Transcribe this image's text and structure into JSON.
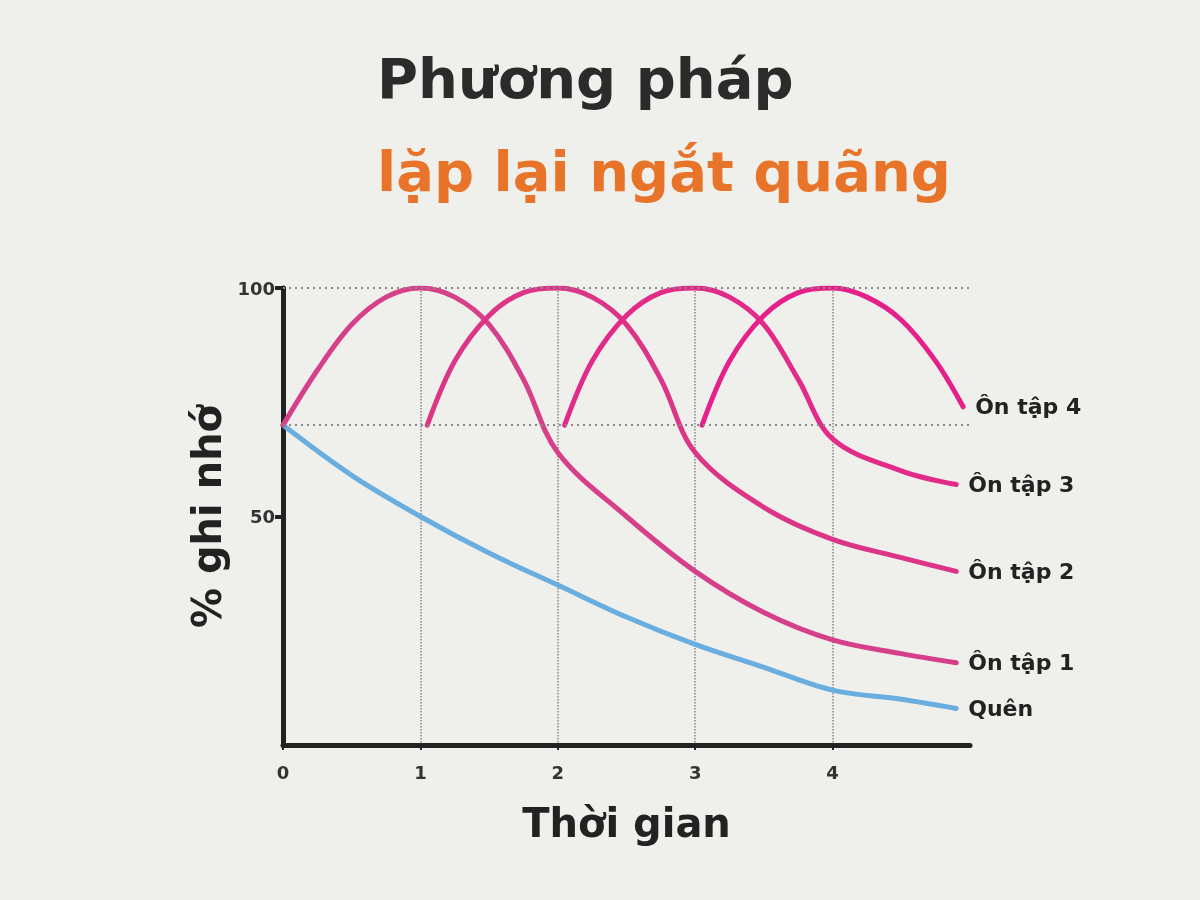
{
  "chart_data": {
    "type": "line",
    "title": "Phương pháp",
    "subtitle": "lặp lại ngắt quãng",
    "xlabel": "Thời gian",
    "ylabel": "% ghi nhớ",
    "xlim": [
      0,
      5
    ],
    "xticks": [
      0,
      1,
      2,
      3,
      4
    ],
    "ylim": [
      0,
      100
    ],
    "yticks": [
      50,
      100
    ],
    "grid": "x",
    "marker": "none",
    "line_style": "solid",
    "legend": false,
    "ref_lines": [
      {
        "axis": "y",
        "value": 100,
        "line_style": "dotted",
        "color": "#888888"
      },
      {
        "axis": "y",
        "value": 70,
        "line_style": "dotted",
        "color": "#888888"
      }
    ],
    "series": [
      {
        "name": "Quên",
        "color": "#6aaee0",
        "x": [
          0,
          0.5,
          1,
          1.5,
          2,
          2.5,
          3,
          3.5,
          4,
          4.5,
          4.9
        ],
        "values": [
          70,
          59,
          50,
          42,
          35,
          28,
          22,
          17,
          12,
          10,
          8
        ]
      },
      {
        "name": "Ôn tập 1",
        "color": "#d6408a",
        "x": [
          0,
          0.25,
          0.5,
          0.75,
          1,
          1.25,
          1.5,
          1.75,
          2,
          2.5,
          3,
          3.5,
          4,
          4.5,
          4.9
        ],
        "values": [
          70,
          82,
          92,
          98,
          100,
          98,
          92,
          80,
          64,
          50,
          38,
          29,
          23,
          20,
          18
        ]
      },
      {
        "name": "Ôn tập 2",
        "color": "#dc3486",
        "x": [
          1.05,
          1.25,
          1.5,
          1.75,
          2,
          2.25,
          2.5,
          2.75,
          3,
          3.5,
          4,
          4.5,
          4.9
        ],
        "values": [
          70,
          84,
          94,
          99,
          100,
          98,
          92,
          80,
          64,
          52,
          45,
          41,
          38
        ]
      },
      {
        "name": "Ôn tập 3",
        "color": "#e22a88",
        "x": [
          2.05,
          2.25,
          2.5,
          2.75,
          3,
          3.25,
          3.5,
          3.75,
          4,
          4.5,
          4.9
        ],
        "values": [
          70,
          84,
          94,
          99,
          100,
          98,
          92,
          80,
          67,
          60,
          57
        ]
      },
      {
        "name": "Ôn tập 4",
        "color": "#e6208a",
        "x": [
          3.05,
          3.25,
          3.5,
          3.75,
          4,
          4.25,
          4.5,
          4.75,
          4.95
        ],
        "values": [
          70,
          84,
          94,
          99,
          100,
          98,
          93,
          84,
          74
        ]
      }
    ]
  }
}
